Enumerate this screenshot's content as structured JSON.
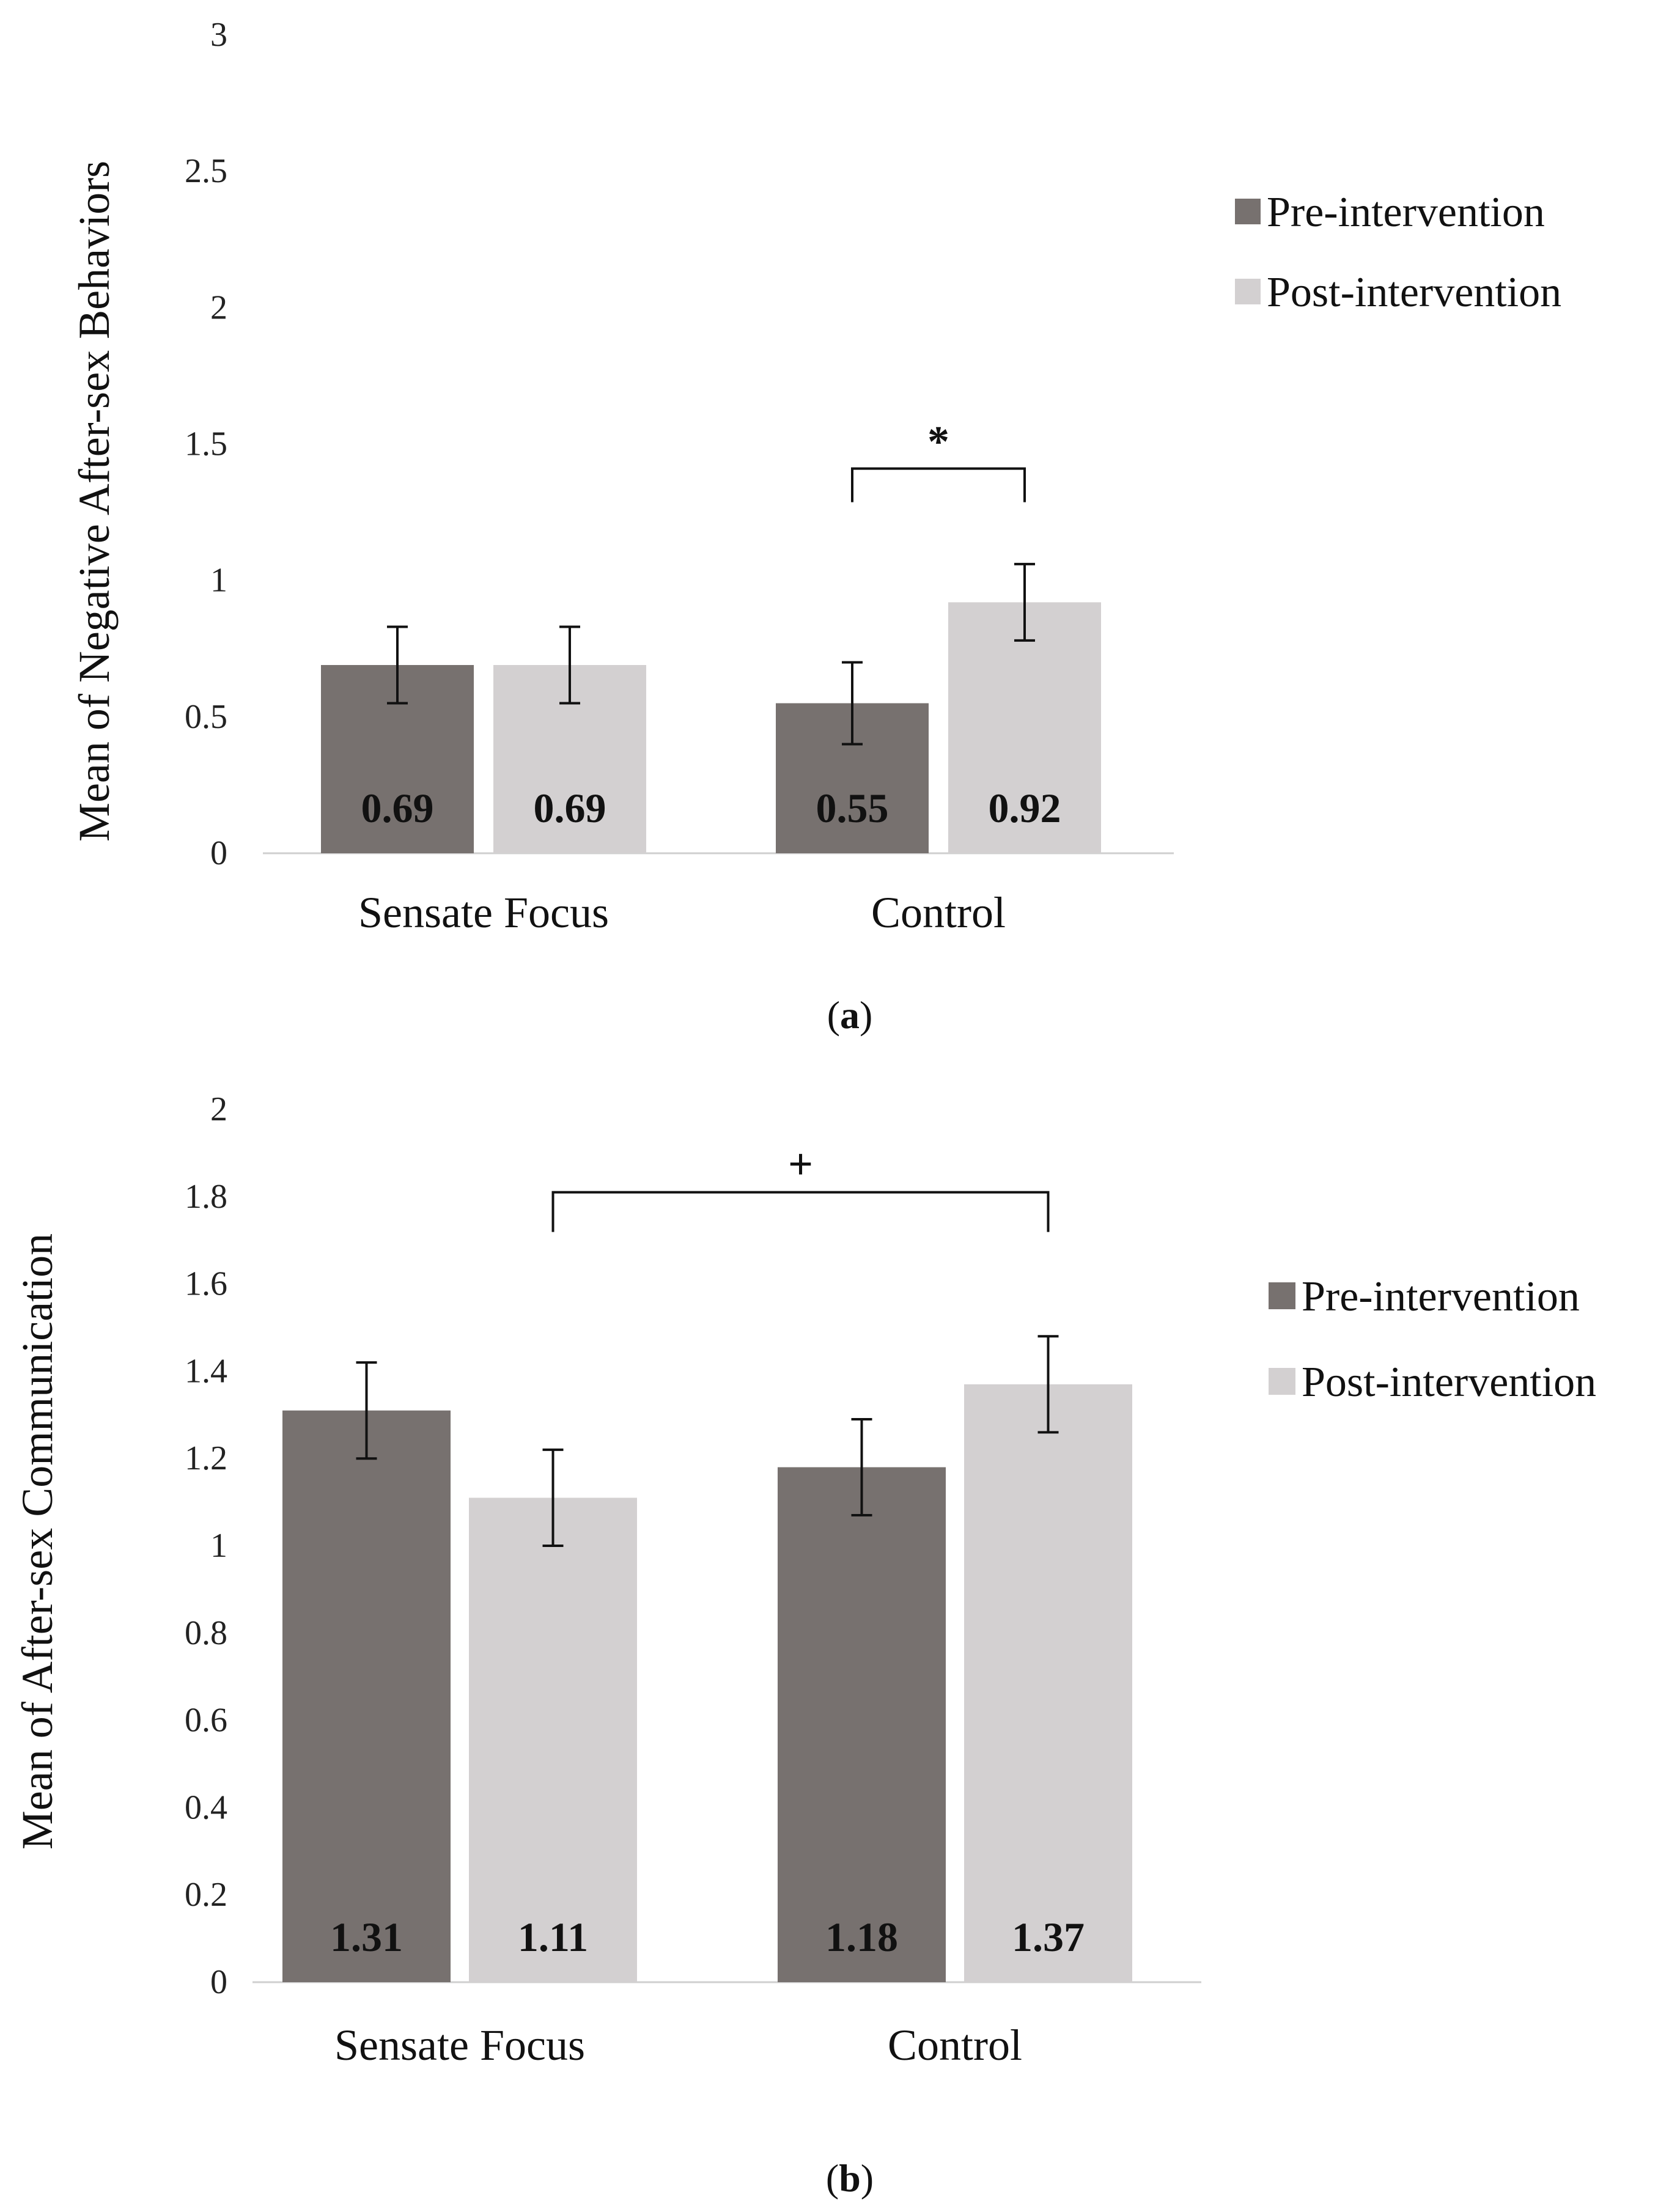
{
  "chart_data": [
    {
      "type": "bar",
      "panel": "a",
      "caption_label": "a",
      "categories": [
        "Sensate Focus",
        "Control"
      ],
      "series": [
        {
          "name": "Pre-intervention",
          "values": [
            0.69,
            0.55
          ],
          "errors": [
            0.14,
            0.15
          ],
          "color": "#77716f"
        },
        {
          "name": "Post-intervention",
          "values": [
            0.69,
            0.92
          ],
          "errors": [
            0.14,
            0.14
          ],
          "color": "#d3d0d1"
        }
      ],
      "value_labels": [
        [
          "0.69",
          "0.55"
        ],
        [
          "0.69",
          "0.92"
        ]
      ],
      "ylabel": "Mean of Negative After-sex Behaviors",
      "xlabel": "",
      "ylim": [
        0,
        3
      ],
      "yticks": [
        "0",
        "0.5",
        "1",
        "1.5",
        "2",
        "2.5",
        "3"
      ],
      "grid": false,
      "legend": "right",
      "significance": {
        "symbol": "*",
        "between": "Control: Pre-intervention vs Post-intervention",
        "level": 1.41
      }
    },
    {
      "type": "bar",
      "panel": "b",
      "caption_label": "b",
      "categories": [
        "Sensate Focus",
        "Control"
      ],
      "series": [
        {
          "name": "Pre-intervention",
          "values": [
            1.31,
            1.18
          ],
          "errors": [
            0.11,
            0.11
          ],
          "color": "#77716f"
        },
        {
          "name": "Post-intervention",
          "values": [
            1.11,
            1.37
          ],
          "errors": [
            0.11,
            0.11
          ],
          "color": "#d3d0d1"
        }
      ],
      "value_labels": [
        [
          "1.31",
          "1.18"
        ],
        [
          "1.11",
          "1.37"
        ]
      ],
      "ylabel": "Mean of After-sex Communication",
      "xlabel": "",
      "ylim": [
        0,
        2
      ],
      "yticks": [
        "0",
        "0.2",
        "0.4",
        "0.6",
        "0.8",
        "1",
        "1.2",
        "1.4",
        "1.6",
        "1.8",
        "2"
      ],
      "grid": false,
      "legend": "right",
      "significance": {
        "symbol": "+",
        "between": "Sensate Focus Post-intervention vs Control Post-intervention",
        "level": 1.81
      }
    }
  ]
}
